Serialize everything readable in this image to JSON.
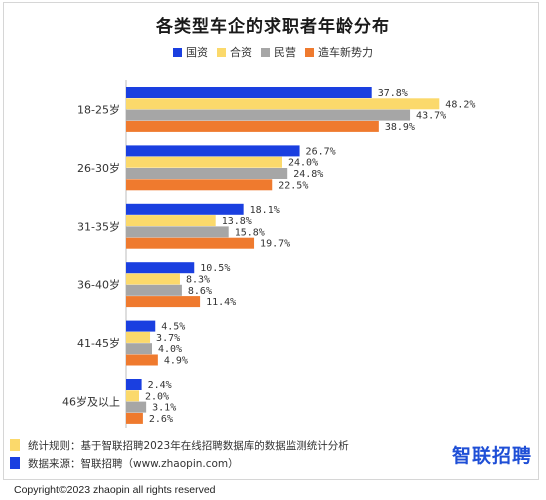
{
  "title": "各类型车企的求职者年龄分布",
  "colors": {
    "国资": "#1a3fe0",
    "合资": "#fbd96b",
    "民营": "#a6a6a6",
    "造车新势力": "#ef7a2e"
  },
  "chart_data": {
    "type": "bar",
    "orientation": "horizontal",
    "title": "各类型车企的求职者年龄分布",
    "categories": [
      "18-25岁",
      "26-30岁",
      "31-35岁",
      "36-40岁",
      "41-45岁",
      "46岁及以上"
    ],
    "series": [
      {
        "name": "国资",
        "color": "#1a3fe0",
        "values": [
          37.8,
          26.7,
          18.1,
          10.5,
          4.5,
          2.4
        ],
        "labels": [
          "37.8%",
          "26.7%",
          "18.1%",
          "10.5%",
          "4.5%",
          "2.4%"
        ]
      },
      {
        "name": "合资",
        "color": "#fbd96b",
        "values": [
          48.2,
          24.0,
          13.8,
          8.3,
          3.7,
          2.0
        ],
        "labels": [
          "48.2%",
          "24.0%",
          "13.8%",
          "8.3%",
          "3.7%",
          "2.0%"
        ]
      },
      {
        "name": "民营",
        "color": "#a6a6a6",
        "values": [
          43.7,
          24.8,
          15.8,
          8.6,
          4.0,
          3.1
        ],
        "labels": [
          "43.7%",
          "24.8%",
          "15.8%",
          "8.6%",
          "4.0%",
          "3.1%"
        ]
      },
      {
        "name": "造车新势力",
        "color": "#ef7a2e",
        "values": [
          38.9,
          22.5,
          19.7,
          11.4,
          4.9,
          2.6
        ],
        "labels": [
          "38.9%",
          "22.5%",
          "19.7%",
          "11.4%",
          "4.9%",
          "2.6%"
        ]
      }
    ],
    "legend_position": "top-center",
    "grid": false
  },
  "footnotes": [
    {
      "text": "统计规则：基于智联招聘2023年在线招聘数据库的数据监测统计分析",
      "color": "#fbd96b"
    },
    {
      "text": "数据来源：智联招聘（www.zhaopin.com）",
      "color": "#1a3fe0"
    }
  ],
  "brand": "智联招聘",
  "copyright": "Copyright©2023 zhaopin all rights reserved"
}
